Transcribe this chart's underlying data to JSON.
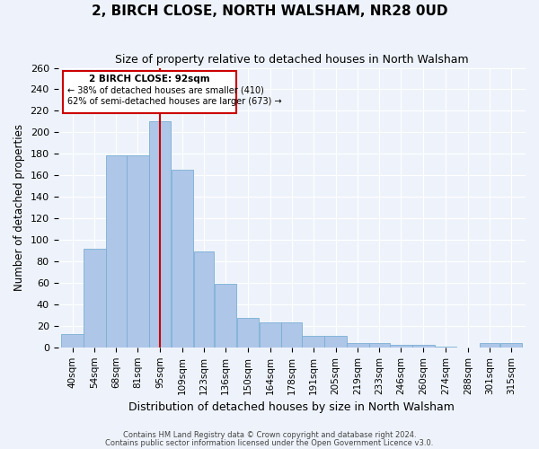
{
  "title": "2, BIRCH CLOSE, NORTH WALSHAM, NR28 0UD",
  "subtitle": "Size of property relative to detached houses in North Walsham",
  "xlabel": "Distribution of detached houses by size in North Walsham",
  "ylabel": "Number of detached properties",
  "bar_labels": [
    "40sqm",
    "54sqm",
    "68sqm",
    "81sqm",
    "95sqm",
    "109sqm",
    "123sqm",
    "136sqm",
    "150sqm",
    "164sqm",
    "178sqm",
    "191sqm",
    "205sqm",
    "219sqm",
    "233sqm",
    "246sqm",
    "260sqm",
    "274sqm",
    "288sqm",
    "301sqm",
    "315sqm"
  ],
  "bar_values": [
    12,
    92,
    179,
    179,
    210,
    165,
    89,
    59,
    27,
    23,
    23,
    11,
    11,
    4,
    4,
    2,
    2,
    1,
    0,
    4,
    4
  ],
  "bar_edges": [
    33,
    47,
    61,
    74,
    88,
    102,
    116,
    129,
    143,
    157,
    171,
    184,
    198,
    212,
    226,
    239,
    253,
    267,
    281,
    295,
    308,
    322
  ],
  "bar_color": "#aec6e8",
  "bar_edgecolor": "#7aafd4",
  "bg_color": "#eef3fb",
  "grid_color": "#ffffff",
  "vline_x": 95,
  "vline_color": "#cc0000",
  "annotation_title": "2 BIRCH CLOSE: 92sqm",
  "annotation_line1": "← 38% of detached houses are smaller (410)",
  "annotation_line2": "62% of semi-detached houses are larger (673) →",
  "annotation_box_color": "#cc0000",
  "ylim": [
    0,
    260
  ],
  "yticks": [
    0,
    20,
    40,
    60,
    80,
    100,
    120,
    140,
    160,
    180,
    200,
    220,
    240,
    260
  ],
  "footer1": "Contains HM Land Registry data © Crown copyright and database right 2024.",
  "footer2": "Contains public sector information licensed under the Open Government Licence v3.0."
}
